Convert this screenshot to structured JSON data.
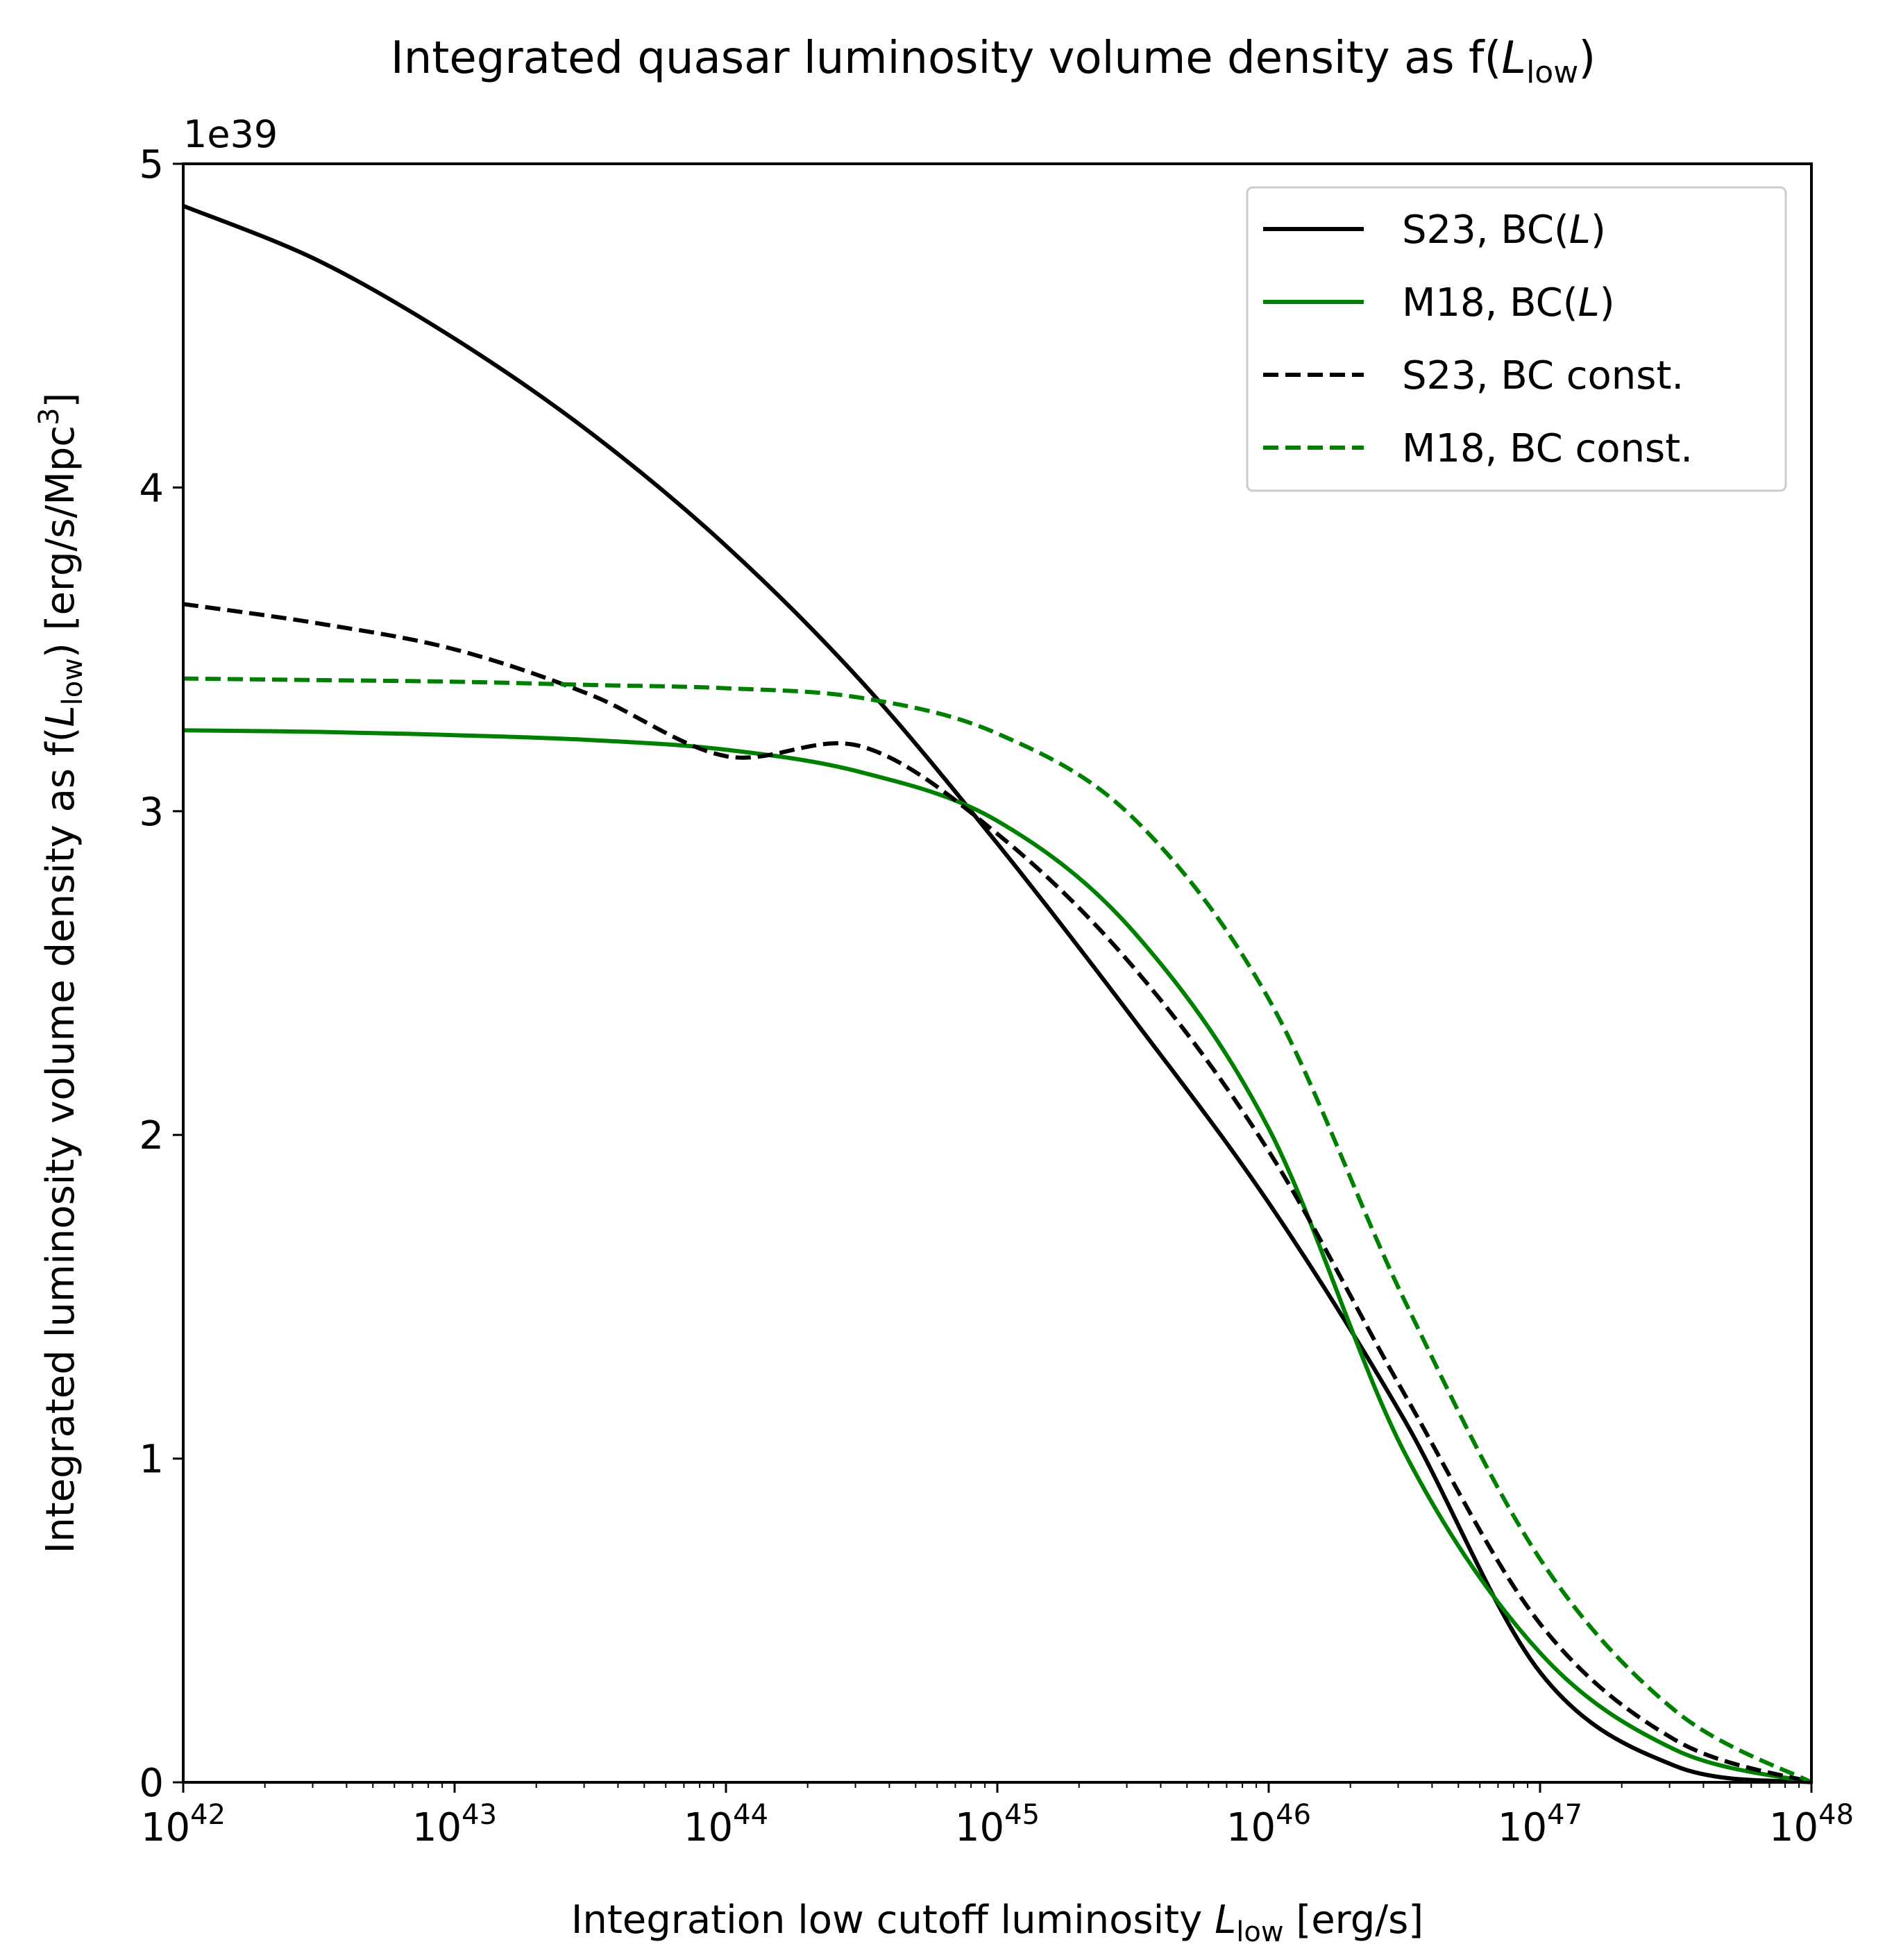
{
  "chart_data": {
    "type": "line",
    "title": {
      "main": "Integrated quasar luminosity volume density as f(",
      "var": "L",
      "sub": "low",
      "close": ")"
    },
    "xlabel": {
      "main": "Integration low cutoff luminosity ",
      "var": "L",
      "sub": "low",
      "unit": " [erg/s]"
    },
    "ylabel": {
      "pre": "Integrated luminosity volume density as f(",
      "var": "L",
      "sub": "low",
      "mid": ") [erg/s/Mpc",
      "sup": "3",
      "end": "]"
    },
    "y_offset_text": "1e39",
    "x_scale": "log",
    "xlim": [
      1e+42,
      1e+48
    ],
    "ylim": [
      0,
      5
    ],
    "x_ticks": [
      {
        "base": "10",
        "exp": "42"
      },
      {
        "base": "10",
        "exp": "43"
      },
      {
        "base": "10",
        "exp": "44"
      },
      {
        "base": "10",
        "exp": "45"
      },
      {
        "base": "10",
        "exp": "46"
      },
      {
        "base": "10",
        "exp": "47"
      },
      {
        "base": "10",
        "exp": "48"
      }
    ],
    "y_ticks": [
      "0",
      "1",
      "2",
      "3",
      "4",
      "5"
    ],
    "grid": false,
    "legend_position": "top-right",
    "x": [
      1e+42,
      3.16e+42,
      1e+43,
      3.16e+43,
      1e+44,
      3.16e+44,
      1e+45,
      3.16e+45,
      1e+46,
      3.16e+46,
      1e+47,
      3.16e+47,
      1e+48
    ],
    "series": [
      {
        "name": "S23, BC(L)",
        "legend": {
          "pre": "S23, BC(",
          "var": "L",
          "post": ")"
        },
        "color": "#000000",
        "dash": "solid",
        "values": [
          4.87,
          4.7,
          4.46,
          4.17,
          3.82,
          3.4,
          2.9,
          2.36,
          1.79,
          1.12,
          0.34,
          0.05,
          0.0
        ]
      },
      {
        "name": "M18, BC(L)",
        "legend": {
          "pre": "M18, BC(",
          "var": "L",
          "post": ")"
        },
        "color": "#008000",
        "dash": "solid",
        "values": [
          3.25,
          3.245,
          3.235,
          3.22,
          3.19,
          3.12,
          2.97,
          2.63,
          2.02,
          1.02,
          0.4,
          0.1,
          0.0
        ]
      },
      {
        "name": "S23, BC const.",
        "legend": {
          "pre": "S23, BC const.",
          "var": "",
          "post": ""
        },
        "color": "#000000",
        "dash": "dashed",
        "values": [
          3.64,
          3.58,
          3.5,
          3.36,
          3.17,
          3.2,
          2.93,
          2.52,
          1.95,
          1.2,
          0.49,
          0.13,
          0.0
        ]
      },
      {
        "name": "M18, BC const.",
        "legend": {
          "pre": "M18, BC const.",
          "var": "",
          "post": ""
        },
        "color": "#008000",
        "dash": "dashed",
        "values": [
          3.41,
          3.405,
          3.4,
          3.39,
          3.38,
          3.35,
          3.24,
          2.98,
          2.42,
          1.49,
          0.69,
          0.22,
          0.0
        ]
      }
    ]
  }
}
